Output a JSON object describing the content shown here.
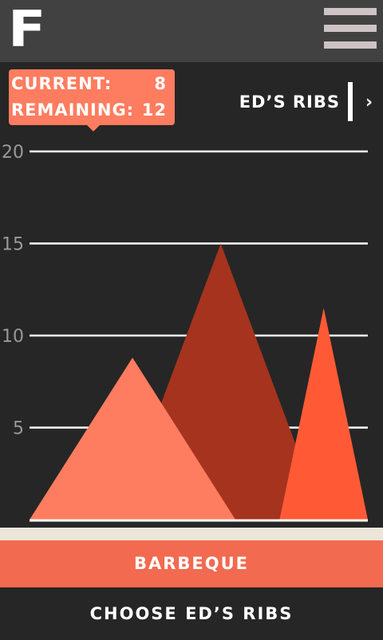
{
  "app": {
    "logo": "F"
  },
  "header": {
    "menu_icon": "hamburger-menu-icon"
  },
  "tooltip": {
    "current_label": "CURRENT:",
    "current_value": "8",
    "remaining_label": "REMAINING:",
    "remaining_value": "12"
  },
  "series_nav": {
    "title": "ED’S RIBS",
    "next_icon": "chevron-right-icon",
    "next_glyph": "›"
  },
  "buttons": {
    "primary": "BARBEQUE",
    "secondary": "CHOOSE ED’S RIBS"
  },
  "colors": {
    "background": "#262626",
    "topbar": "#414141",
    "accent": "#f26a50",
    "tooltip": "#fe7c5f",
    "peak_light": "#fe7c5f",
    "peak_dark": "#a6331e",
    "peak_bright": "#ff5a35"
  },
  "chart_data": {
    "type": "area",
    "y_ticks": [
      "20",
      "15",
      "10",
      "5"
    ],
    "ylim": [
      0,
      20
    ],
    "grid": true,
    "series": [
      {
        "color": "#a6331e",
        "x": [
          0.6,
          1.3,
          2.0
        ],
        "y": [
          0,
          15,
          0
        ]
      },
      {
        "color": "#ff5a35",
        "x": [
          1.7,
          2.0,
          2.3
        ],
        "y": [
          0,
          11.5,
          0
        ]
      },
      {
        "color": "#fe7c5f",
        "x": [
          0,
          0.7,
          1.4
        ],
        "y": [
          0,
          8.8,
          0
        ]
      }
    ]
  }
}
